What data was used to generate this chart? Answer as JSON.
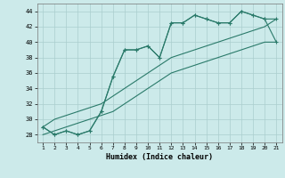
{
  "x": [
    1,
    2,
    3,
    4,
    5,
    6,
    7,
    8,
    9,
    10,
    11,
    12,
    13,
    14,
    15,
    16,
    17,
    18,
    19,
    20,
    21
  ],
  "line_jagged1": [
    29,
    28,
    28.5,
    28,
    28.5,
    31,
    35.5,
    39,
    39,
    39.5,
    38,
    42.5,
    42.5,
    43.5,
    43,
    42.5,
    42.5,
    44,
    43.5,
    43,
    43
  ],
  "line_jagged2": [
    29,
    28,
    28.5,
    28,
    28.5,
    31,
    35.5,
    39,
    39,
    39.5,
    38,
    42.5,
    42.5,
    43.5,
    43,
    42.5,
    42.5,
    44,
    43.5,
    43,
    40
  ],
  "line_straight1": [
    29,
    30,
    30.5,
    31,
    31.5,
    32,
    33,
    34,
    35,
    36,
    37,
    38,
    38.5,
    39,
    39.5,
    40,
    40.5,
    41,
    41.5,
    42,
    43
  ],
  "line_straight2": [
    28,
    28.5,
    29,
    29.5,
    30,
    30.5,
    31,
    32,
    33,
    34,
    35,
    36,
    36.5,
    37,
    37.5,
    38,
    38.5,
    39,
    39.5,
    40,
    40
  ],
  "color": "#2a7a6a",
  "bg_color": "#cceaea",
  "grid_color": "#aacece",
  "xlabel": "Humidex (Indice chaleur)",
  "ylim": [
    27,
    45
  ],
  "xlim": [
    0.5,
    21.5
  ],
  "yticks": [
    28,
    30,
    32,
    34,
    36,
    38,
    40,
    42,
    44
  ],
  "xticks": [
    1,
    2,
    3,
    4,
    5,
    6,
    7,
    8,
    9,
    10,
    11,
    12,
    13,
    14,
    15,
    16,
    17,
    18,
    19,
    20,
    21
  ]
}
